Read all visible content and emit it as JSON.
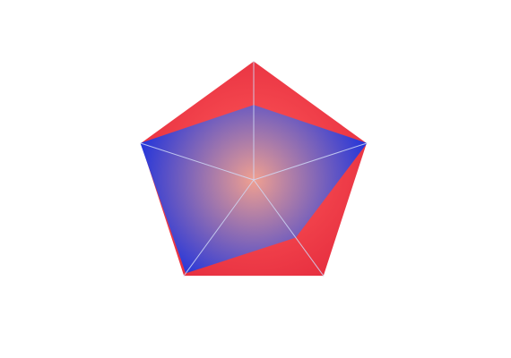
{
  "chart_data": {
    "type": "radar",
    "title": "",
    "indicators": [
      {
        "name": "",
        "max": 100
      },
      {
        "name": "",
        "max": 100
      },
      {
        "name": "",
        "max": 100
      },
      {
        "name": "",
        "max": 100
      },
      {
        "name": "",
        "max": 100
      }
    ],
    "series": [
      {
        "values": [
          63,
          100,
          60,
          97,
          100
        ]
      }
    ],
    "split_number": 1,
    "legend": "none",
    "grid": true,
    "colors": {
      "background_area_outer": "#e62e3f",
      "background_area_inner": "#ff5a5a",
      "series_area_center": "#f0a090",
      "series_area_edge": "#1e32dc",
      "axis_line": "#cfd8f6",
      "split_line": "#ffffff"
    }
  }
}
